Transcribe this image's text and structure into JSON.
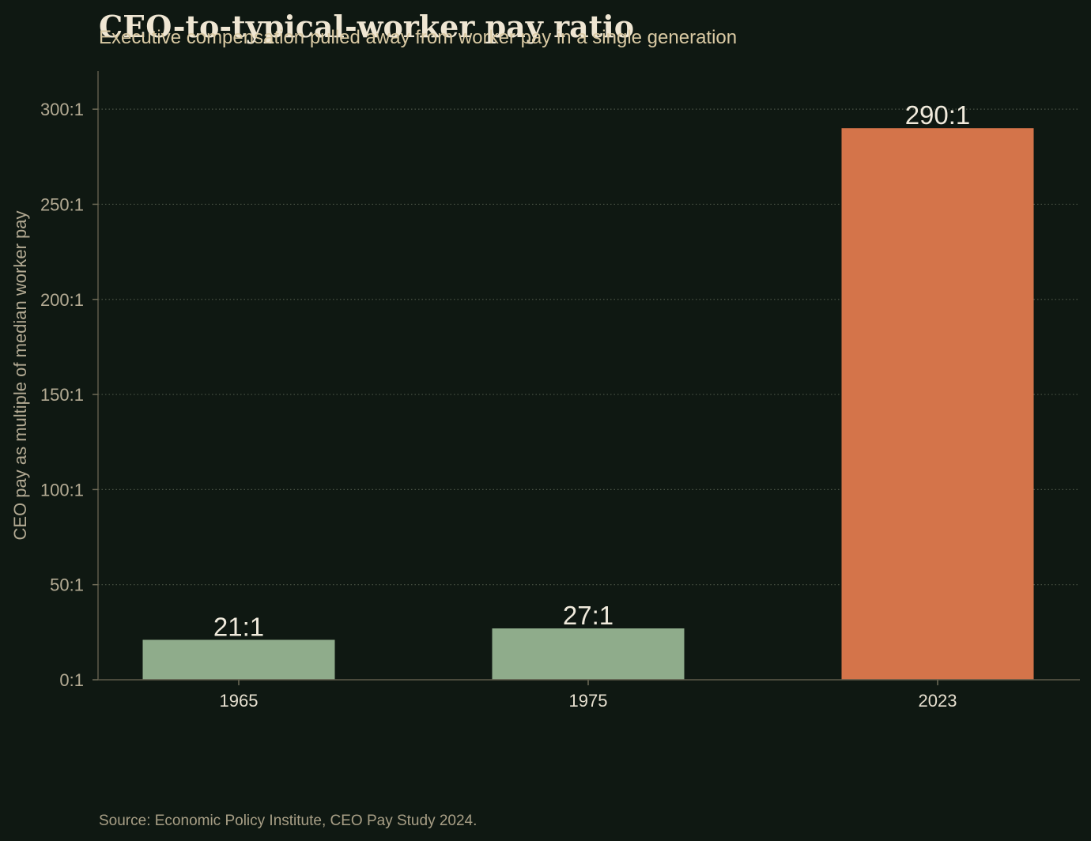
{
  "chart_data": {
    "type": "bar",
    "title": "CEO-to-typical-worker pay ratio",
    "subtitle": "Executive compensation pulled away from worker pay in a single generation",
    "ylabel": "CEO pay as multiple of median worker pay",
    "xlabel": "",
    "categories": [
      "1965",
      "1975",
      "2023"
    ],
    "values": [
      21,
      27,
      290
    ],
    "data_labels": [
      "21:1",
      "27:1",
      "290:1"
    ],
    "ylim": [
      0,
      320
    ],
    "yticks": [
      0,
      50,
      100,
      150,
      200,
      250,
      300
    ],
    "ytick_labels": [
      "0:1",
      "50:1",
      "100:1",
      "150:1",
      "200:1",
      "250:1",
      "300:1"
    ],
    "grid": true,
    "grid_style": "dotted horizontal",
    "bar_colors": [
      "#8fac8b",
      "#8fac8b",
      "#d4744a"
    ],
    "source": "Source: Economic Policy Institute, CEO Pay Study 2024."
  }
}
